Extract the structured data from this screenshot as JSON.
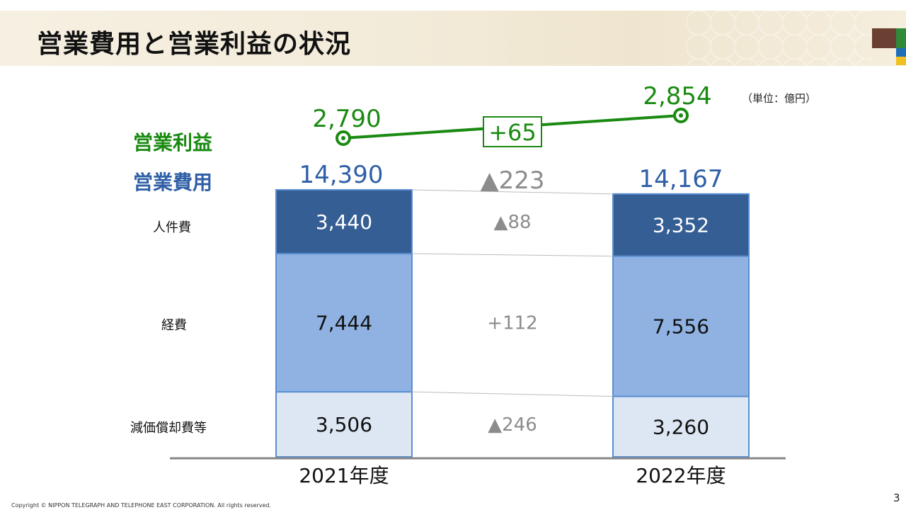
{
  "slide": {
    "title": "営業費用と営業利益の状況",
    "unit": "（単位：億円）",
    "footer": "Copyright © NIPPON TELEGRAPH AND TELEPHONE EAST CORPORATION. All rights reserved.",
    "page_number": "3"
  },
  "colors": {
    "profit": "#1a8a12",
    "expense_total": "#2f5fa7",
    "personnel": "#355e94",
    "expenses": "#8fb2e2",
    "depreciation": "#dde7f3",
    "bar_border": "#5a8ed0",
    "diff": "#8c8c8c",
    "axis": "#888888",
    "brand_brown": "#6b3f32",
    "brand_green": "#2e8b3a",
    "brand_blue": "#1f6fb8",
    "brand_yellow": "#f0c020"
  },
  "chart_data": {
    "type": "bar",
    "stacked": true,
    "categories": [
      "2021年度",
      "2022年度"
    ],
    "series": [
      {
        "name": "減価償却費等",
        "values": [
          3506,
          3260
        ],
        "labels": [
          "3,506",
          "3,260"
        ]
      },
      {
        "name": "経費",
        "values": [
          7444,
          7556
        ],
        "labels": [
          "7,444",
          "7,556"
        ]
      },
      {
        "name": "人件費",
        "values": [
          3440,
          3352
        ],
        "labels": [
          "3,440",
          "3,352"
        ]
      }
    ],
    "totals": {
      "name": "営業費用",
      "values": [
        14390,
        14167
      ],
      "labels": [
        "14,390",
        "14,167"
      ]
    },
    "profit": {
      "name": "営業利益",
      "type": "line",
      "values": [
        2790,
        2854
      ],
      "labels": [
        "2,790",
        "2,854"
      ]
    },
    "differences": {
      "profit": "+65",
      "total": "▲223",
      "series": [
        "▲246",
        "+112",
        "▲88"
      ]
    }
  }
}
